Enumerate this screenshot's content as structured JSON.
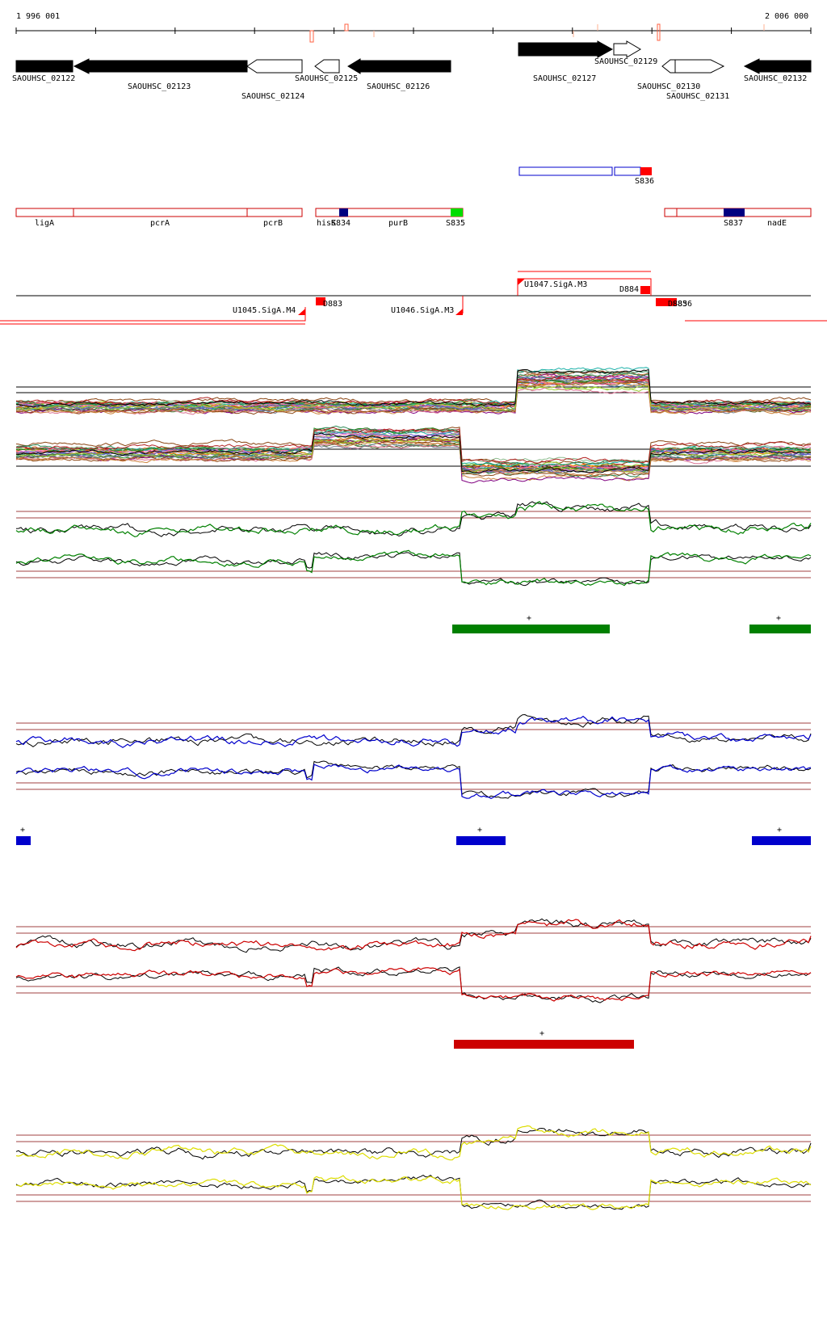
{
  "ruler": {
    "start_label": "1 996 001",
    "end_label": "2 006 000"
  },
  "genes": [
    {
      "label": "SAOUHSC_02122",
      "strand": "-",
      "fill": "black"
    },
    {
      "label": "SAOUHSC_02123",
      "strand": "-",
      "fill": "black"
    },
    {
      "label": "SAOUHSC_02124",
      "strand": "-",
      "fill": "white"
    },
    {
      "label": "SAOUHSC_02125",
      "strand": "-",
      "fill": "white"
    },
    {
      "label": "SAOUHSC_02126",
      "strand": "-",
      "fill": "black"
    },
    {
      "label": "SAOUHSC_02127",
      "strand": "+",
      "fill": "black"
    },
    {
      "label": "SAOUHSC_02129",
      "strand": "+",
      "fill": "white"
    },
    {
      "label": "SAOUHSC_02130",
      "strand": "-",
      "fill": "white"
    },
    {
      "label": "SAOUHSC_02131",
      "strand": "+",
      "fill": "white"
    },
    {
      "label": "SAOUHSC_02132",
      "strand": "-",
      "fill": "black"
    }
  ],
  "segments_top": [
    {
      "label": "S836",
      "color": "#ff0000"
    }
  ],
  "segments_bottom": [
    {
      "label": "ligA"
    },
    {
      "label": "pcrA"
    },
    {
      "label": "pcrB"
    },
    {
      "label": "hisK"
    },
    {
      "label": "S834",
      "color": "#000080"
    },
    {
      "label": "purB"
    },
    {
      "label": "S835",
      "color": "#00dd00"
    },
    {
      "label": "S837",
      "color": "#000080"
    },
    {
      "label": "nadE"
    }
  ],
  "features": [
    {
      "label": "U1045.SigA.M4"
    },
    {
      "label": "D883"
    },
    {
      "label": "U1046.SigA.M3"
    },
    {
      "label": "U1047.SigA.M3"
    },
    {
      "label": "D884"
    },
    {
      "label": "D885"
    },
    {
      "label": "S836"
    }
  ],
  "conditions": [
    {
      "color": "#008000",
      "plus_labels": [
        "+",
        "+"
      ]
    },
    {
      "color": "#0000cc",
      "plus_labels": [
        "+",
        "+",
        "+"
      ]
    },
    {
      "color": "#cc0000",
      "plus_labels": [
        "+"
      ]
    },
    {
      "color": "#dddd00",
      "plus_labels": []
    }
  ]
}
